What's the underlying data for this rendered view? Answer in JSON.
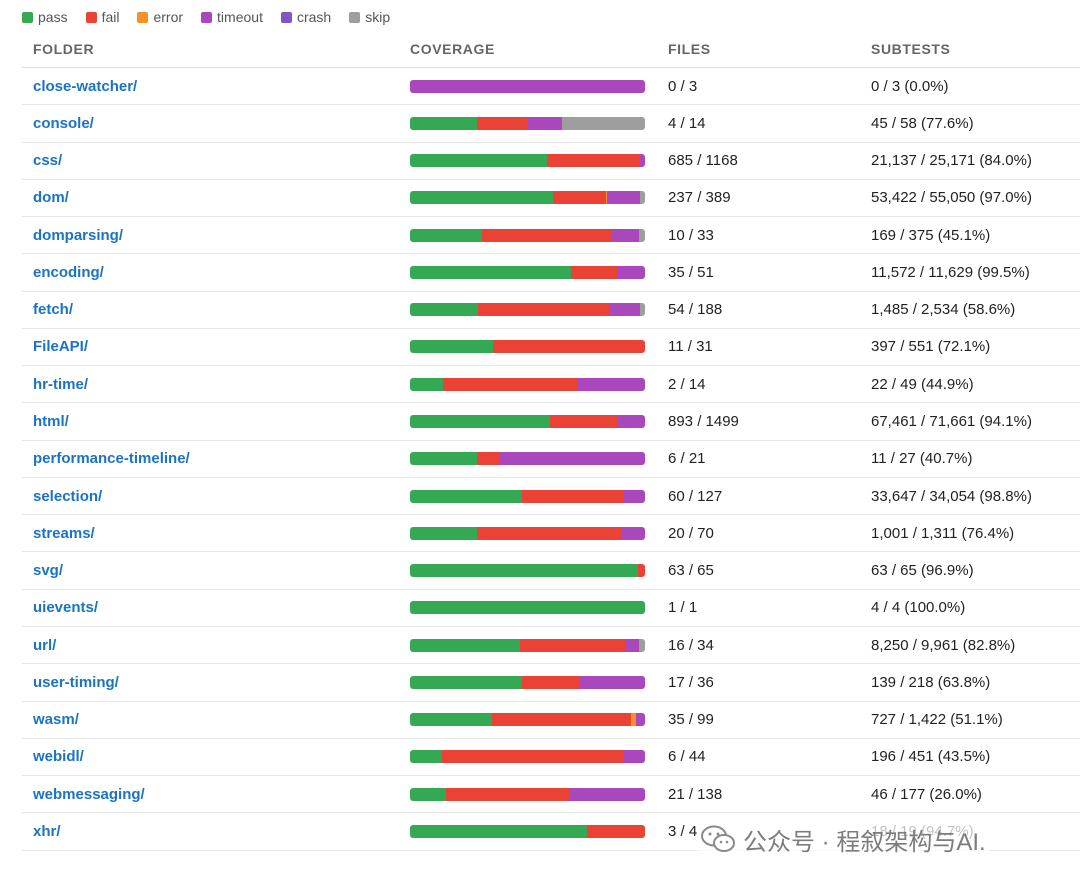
{
  "colors": {
    "pass": "#35a853",
    "fail": "#ea4335",
    "error": "#f59128",
    "timeout": "#ab47bc",
    "crash": "#7e57c2",
    "skip": "#9e9e9e"
  },
  "legend": [
    {
      "key": "pass",
      "label": "pass"
    },
    {
      "key": "fail",
      "label": "fail"
    },
    {
      "key": "error",
      "label": "error"
    },
    {
      "key": "timeout",
      "label": "timeout"
    },
    {
      "key": "crash",
      "label": "crash"
    },
    {
      "key": "skip",
      "label": "skip"
    }
  ],
  "headers": {
    "folder": "FOLDER",
    "coverage": "COVERAGE",
    "files": "FILES",
    "subtests": "SUBTESTS"
  },
  "rows": [
    {
      "folder": "close-watcher/",
      "files": "0 / 3",
      "subtests": "0 / 3 (0.0%)",
      "coverage": {
        "pass": 0,
        "fail": 0,
        "error": 0,
        "timeout": 100,
        "crash": 0,
        "skip": 0
      }
    },
    {
      "folder": "console/",
      "files": "4 / 14",
      "subtests": "45 / 58 (77.6%)",
      "coverage": {
        "pass": 28.5,
        "fail": 21.5,
        "error": 0,
        "timeout": 14.5,
        "crash": 0,
        "skip": 35.5
      }
    },
    {
      "folder": "css/",
      "files": "685 / 1168",
      "subtests": "21,137 / 25,171 (84.0%)",
      "coverage": {
        "pass": 58.5,
        "fail": 39.5,
        "error": 0,
        "timeout": 2,
        "crash": 0,
        "skip": 0
      }
    },
    {
      "folder": "dom/",
      "files": "237 / 389",
      "subtests": "53,422 / 55,050 (97.0%)",
      "coverage": {
        "pass": 61,
        "fail": 22.5,
        "error": 0.5,
        "timeout": 14,
        "crash": 0,
        "skip": 2
      }
    },
    {
      "folder": "domparsing/",
      "files": "10 / 33",
      "subtests": "169 / 375 (45.1%)",
      "coverage": {
        "pass": 30.5,
        "fail": 55,
        "error": 0,
        "timeout": 12,
        "crash": 0,
        "skip": 2.5
      }
    },
    {
      "folder": "encoding/",
      "files": "35 / 51",
      "subtests": "11,572 / 11,629 (99.5%)",
      "coverage": {
        "pass": 68.5,
        "fail": 20,
        "error": 0,
        "timeout": 11.5,
        "crash": 0,
        "skip": 0
      }
    },
    {
      "folder": "fetch/",
      "files": "54 / 188",
      "subtests": "1,485 / 2,534 (58.6%)",
      "coverage": {
        "pass": 29,
        "fail": 55.5,
        "error": 0,
        "timeout": 13.5,
        "crash": 0,
        "skip": 2
      }
    },
    {
      "folder": "FileAPI/",
      "files": "11 / 31",
      "subtests": "397 / 551 (72.1%)",
      "coverage": {
        "pass": 35.5,
        "fail": 64.5,
        "error": 0,
        "timeout": 0,
        "crash": 0,
        "skip": 0
      }
    },
    {
      "folder": "hr-time/",
      "files": "2 / 14",
      "subtests": "22 / 49 (44.9%)",
      "coverage": {
        "pass": 14,
        "fail": 57.5,
        "error": 0,
        "timeout": 28.5,
        "crash": 0,
        "skip": 0
      }
    },
    {
      "folder": "html/",
      "files": "893 / 1499",
      "subtests": "67,461 / 71,661 (94.1%)",
      "coverage": {
        "pass": 59.5,
        "fail": 29,
        "error": 0,
        "timeout": 11.5,
        "crash": 0,
        "skip": 0
      }
    },
    {
      "folder": "performance-timeline/",
      "files": "6 / 21",
      "subtests": "11 / 27 (40.7%)",
      "coverage": {
        "pass": 28.5,
        "fail": 9.5,
        "error": 0,
        "timeout": 62,
        "crash": 0,
        "skip": 0
      }
    },
    {
      "folder": "selection/",
      "files": "60 / 127",
      "subtests": "33,647 / 34,054 (98.8%)",
      "coverage": {
        "pass": 47.5,
        "fail": 43,
        "error": 0,
        "timeout": 9.5,
        "crash": 0,
        "skip": 0
      }
    },
    {
      "folder": "streams/",
      "files": "20 / 70",
      "subtests": "1,001 / 1,311 (76.4%)",
      "coverage": {
        "pass": 28.5,
        "fail": 61.5,
        "error": 0,
        "timeout": 10,
        "crash": 0,
        "skip": 0
      }
    },
    {
      "folder": "svg/",
      "files": "63 / 65",
      "subtests": "63 / 65 (96.9%)",
      "coverage": {
        "pass": 97,
        "fail": 3,
        "error": 0,
        "timeout": 0,
        "crash": 0,
        "skip": 0
      }
    },
    {
      "folder": "uievents/",
      "files": "1 / 1",
      "subtests": "4 / 4 (100.0%)",
      "coverage": {
        "pass": 100,
        "fail": 0,
        "error": 0,
        "timeout": 0,
        "crash": 0,
        "skip": 0
      }
    },
    {
      "folder": "url/",
      "files": "16 / 34",
      "subtests": "8,250 / 9,961 (82.8%)",
      "coverage": {
        "pass": 47,
        "fail": 44.5,
        "error": 0,
        "timeout": 6,
        "crash": 0,
        "skip": 2.5
      }
    },
    {
      "folder": "user-timing/",
      "files": "17 / 36",
      "subtests": "139 / 218 (63.8%)",
      "coverage": {
        "pass": 47.5,
        "fail": 25,
        "error": 0,
        "timeout": 27.5,
        "crash": 0,
        "skip": 0
      }
    },
    {
      "folder": "wasm/",
      "files": "35 / 99",
      "subtests": "727 / 1,422 (51.1%)",
      "coverage": {
        "pass": 35,
        "fail": 59,
        "error": 2,
        "timeout": 4,
        "crash": 0,
        "skip": 0
      }
    },
    {
      "folder": "webidl/",
      "files": "6 / 44",
      "subtests": "196 / 451 (43.5%)",
      "coverage": {
        "pass": 13.5,
        "fail": 77.5,
        "error": 0,
        "timeout": 9,
        "crash": 0,
        "skip": 0
      }
    },
    {
      "folder": "webmessaging/",
      "files": "21 / 138",
      "subtests": "46 / 177 (26.0%)",
      "coverage": {
        "pass": 15.5,
        "fail": 52.5,
        "error": 0,
        "timeout": 32,
        "crash": 0,
        "skip": 0
      }
    },
    {
      "folder": "xhr/",
      "files": "3 / 4",
      "subtests": "18 / 19 (94.7%)",
      "coverage": {
        "pass": 75.5,
        "fail": 24.5,
        "error": 0,
        "timeout": 0,
        "crash": 0,
        "skip": 0
      }
    }
  ],
  "watermark": {
    "text": "公众号 · 程叙架构与AI.",
    "icon": "wechat-icon"
  }
}
